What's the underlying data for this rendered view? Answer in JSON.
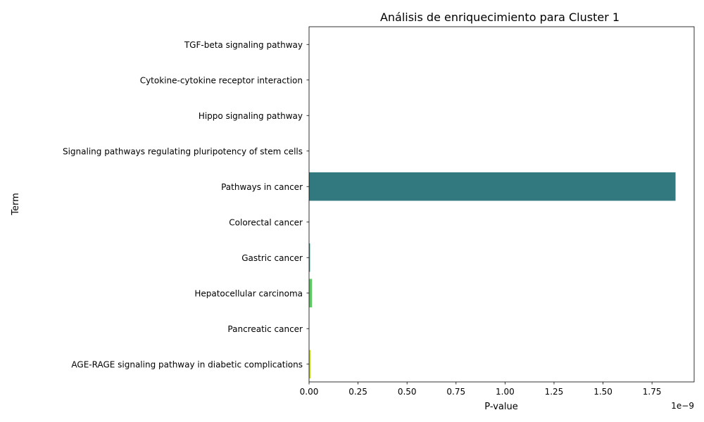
{
  "chart_data": {
    "type": "bar",
    "orientation": "horizontal",
    "title": "Análisis de enriquecimiento para Cluster 1",
    "xlabel": "P-value",
    "ylabel": "Term",
    "x_scale_label": "1e−9",
    "xlim": [
      0,
      1.965
    ],
    "x_ticks": [
      0.0,
      0.25,
      0.5,
      0.75,
      1.0,
      1.25,
      1.5,
      1.75
    ],
    "x_tick_labels": [
      "0.00",
      "0.25",
      "0.50",
      "0.75",
      "1.00",
      "1.25",
      "1.50",
      "1.75"
    ],
    "categories": [
      "TGF-beta signaling pathway",
      "Cytokine-cytokine receptor interaction",
      "Hippo signaling pathway",
      "Signaling pathways regulating pluripotency of stem cells",
      "Pathways in cancer",
      "Colorectal cancer",
      "Gastric cancer",
      "Hepatocellular carcinoma",
      "Pancreatic cancer",
      "AGE-RAGE signaling pathway in diabetic complications"
    ],
    "values": [
      1e-07,
      2e-07,
      5e-07,
      1e-06,
      1.87,
      0.0001,
      0.005,
      0.015,
      0.0003,
      0.008
    ],
    "colors": [
      "#472d7b",
      "#3b528b",
      "#2c728e",
      "#21918c",
      "#31797f",
      "#28ae80",
      "#1f9a8a",
      "#5ec962",
      "#addc30",
      "#c8d52a"
    ],
    "grid": false,
    "legend": "none"
  }
}
